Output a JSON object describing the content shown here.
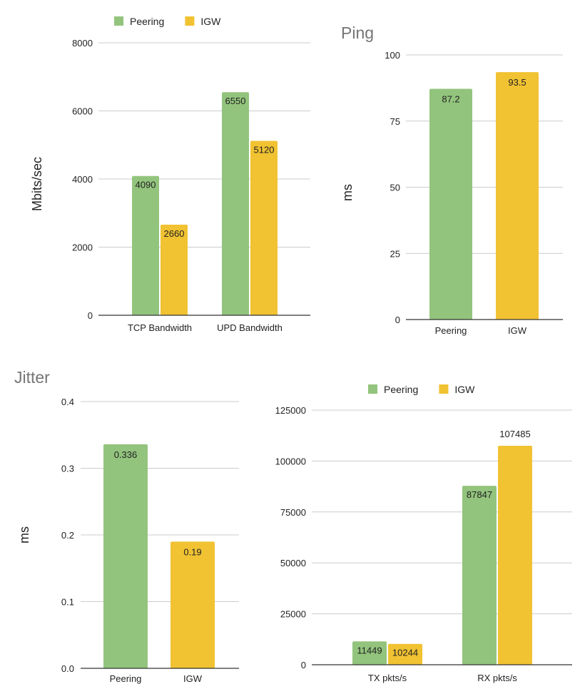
{
  "colors": {
    "peering": "#93c47d",
    "igw": "#f1c232",
    "grid": "#cccccc",
    "axis": "#333333",
    "text": "#222222",
    "title": "#757575"
  },
  "chart_data": [
    {
      "id": "bandwidth",
      "type": "bar",
      "title": "",
      "xlabel": "",
      "ylabel": "Mbits/sec",
      "categories": [
        "TCP Bandwidth",
        "UPD Bandwidth"
      ],
      "series": [
        {
          "name": "Peering",
          "values": [
            4090,
            6550
          ]
        },
        {
          "name": "IGW",
          "values": [
            2660,
            5120
          ]
        }
      ],
      "data_labels": [
        [
          "4090",
          "6550"
        ],
        [
          "2660",
          "5120"
        ]
      ],
      "ylim": [
        0,
        8000
      ],
      "yticks": [
        "0",
        "2000",
        "4000",
        "6000",
        "8000"
      ],
      "grid": true,
      "legend": "top"
    },
    {
      "id": "ping",
      "type": "bar",
      "title": "Ping",
      "xlabel": "",
      "ylabel": "ms",
      "categories": [
        "Peering",
        "IGW"
      ],
      "values": [
        87.2,
        93.5
      ],
      "data_labels": [
        "87.2",
        "93.5"
      ],
      "ylim": [
        0,
        100
      ],
      "yticks": [
        "0",
        "25",
        "50",
        "75",
        "100"
      ],
      "grid": true,
      "legend": "none"
    },
    {
      "id": "jitter",
      "type": "bar",
      "title": "Jitter",
      "xlabel": "",
      "ylabel": "ms",
      "categories": [
        "Peering",
        "IGW"
      ],
      "values": [
        0.336,
        0.19
      ],
      "data_labels": [
        "0.336",
        "0.19"
      ],
      "ylim": [
        0,
        0.4
      ],
      "yticks": [
        "0.0",
        "0.1",
        "0.2",
        "0.3",
        "0.4"
      ],
      "grid": true,
      "legend": "none"
    },
    {
      "id": "packets",
      "type": "bar",
      "title": "",
      "xlabel": "",
      "ylabel": "",
      "categories": [
        "TX pkts/s",
        "RX pkts/s"
      ],
      "series": [
        {
          "name": "Peering",
          "values": [
            11449,
            87847
          ]
        },
        {
          "name": "IGW",
          "values": [
            10244,
            107485
          ]
        }
      ],
      "data_labels": [
        [
          "11449",
          "87847"
        ],
        [
          "10244",
          "107485"
        ]
      ],
      "ylim": [
        0,
        125000
      ],
      "yticks": [
        "0",
        "25000",
        "50000",
        "75000",
        "100000",
        "125000"
      ],
      "grid": true,
      "legend": "top"
    }
  ]
}
